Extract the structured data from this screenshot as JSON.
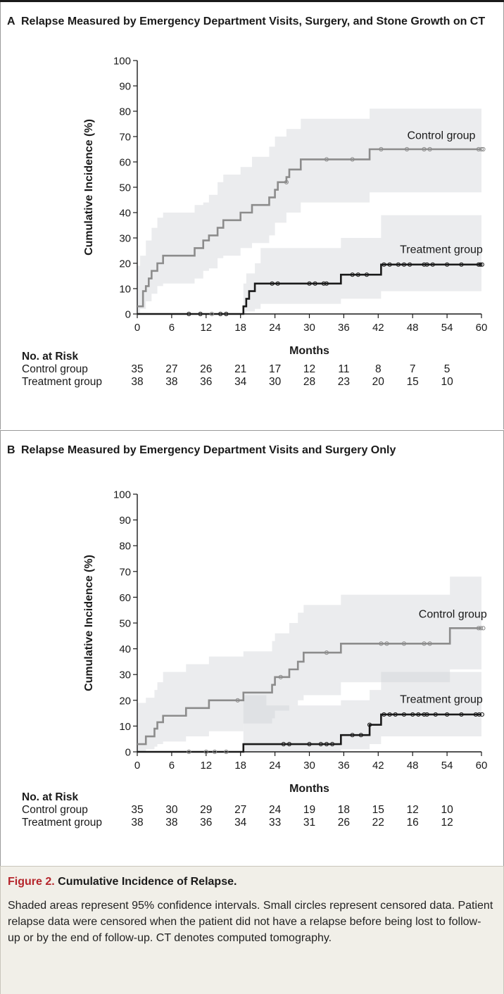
{
  "chart_data": [
    {
      "type": "line",
      "panel_letter": "A",
      "title": "Relapse Measured by Emergency Department Visits, Surgery, and Stone Growth on CT",
      "xlabel": "Months",
      "ylabel": "Cumulative Incidence (%)",
      "xlim": [
        0,
        60
      ],
      "ylim": [
        0,
        100
      ],
      "xticks": [
        0,
        6,
        12,
        18,
        24,
        30,
        36,
        42,
        48,
        54,
        60
      ],
      "yticks": [
        0,
        10,
        20,
        30,
        40,
        50,
        60,
        70,
        80,
        90,
        100
      ],
      "grid": false,
      "series": [
        {
          "name": "Control group",
          "color": "#8c8c8c",
          "step": [
            [
              0,
              3
            ],
            [
              1,
              9
            ],
            [
              1.5,
              11
            ],
            [
              2,
              14
            ],
            [
              2.5,
              17
            ],
            [
              3.5,
              20
            ],
            [
              4.5,
              23
            ],
            [
              10,
              26
            ],
            [
              11.5,
              29
            ],
            [
              12.5,
              31
            ],
            [
              14,
              34
            ],
            [
              15,
              37
            ],
            [
              18,
              40
            ],
            [
              20,
              43
            ],
            [
              23,
              46
            ],
            [
              24,
              49
            ],
            [
              24.5,
              52
            ],
            [
              26,
              54
            ],
            [
              26.5,
              57
            ],
            [
              28.5,
              61
            ],
            [
              40.5,
              65
            ],
            [
              60,
              65
            ]
          ],
          "ci_band": [
            [
              0,
              0,
              19
            ],
            [
              0.5,
              2,
              23
            ],
            [
              1.5,
              5,
              29
            ],
            [
              2.5,
              8,
              34
            ],
            [
              3.5,
              11,
              38
            ],
            [
              4.5,
              12,
              40
            ],
            [
              10,
              14,
              43
            ],
            [
              11.5,
              17,
              44
            ],
            [
              12.5,
              18,
              47
            ],
            [
              14,
              22,
              52
            ],
            [
              15,
              23,
              55
            ],
            [
              18,
              26,
              58
            ],
            [
              20,
              28,
              62
            ],
            [
              23,
              31,
              66
            ],
            [
              24,
              36,
              70
            ],
            [
              26,
              40,
              73
            ],
            [
              28.5,
              44,
              77
            ],
            [
              40.5,
              48,
              81
            ],
            [
              60,
              48,
              81
            ]
          ],
          "censored": [
            [
              11,
              0
            ],
            [
              13,
              0
            ],
            [
              15.5,
              0
            ],
            [
              26,
              52
            ],
            [
              33,
              61
            ],
            [
              37.5,
              61
            ],
            [
              42.5,
              65
            ],
            [
              47,
              65
            ],
            [
              50,
              65
            ],
            [
              51,
              65
            ],
            [
              59.5,
              65
            ],
            [
              60,
              65
            ],
            [
              60.3,
              65
            ]
          ]
        },
        {
          "name": "Treatment group",
          "color": "#1a1a1a",
          "step": [
            [
              0,
              0
            ],
            [
              18.5,
              0
            ],
            [
              18.5,
              3
            ],
            [
              19,
              6
            ],
            [
              19.5,
              9
            ],
            [
              20.5,
              12
            ],
            [
              35.5,
              15.5
            ],
            [
              42.5,
              19.5
            ],
            [
              60,
              19.5
            ]
          ],
          "ci_band": [
            [
              18.5,
              0,
              12
            ],
            [
              19,
              1,
              16
            ],
            [
              20.5,
              2,
              20
            ],
            [
              21.5,
              4,
              26
            ],
            [
              35.5,
              6,
              30
            ],
            [
              42.5,
              9,
              39
            ],
            [
              60,
              9,
              39
            ]
          ],
          "censored": [
            [
              9,
              0
            ],
            [
              11,
              0
            ],
            [
              14.5,
              0
            ],
            [
              15.5,
              0
            ],
            [
              23.5,
              12
            ],
            [
              24.5,
              12
            ],
            [
              30,
              12
            ],
            [
              31,
              12
            ],
            [
              32.5,
              12
            ],
            [
              33,
              12
            ],
            [
              37.5,
              15.5
            ],
            [
              38.5,
              15.5
            ],
            [
              40,
              15.5
            ],
            [
              43,
              19.5
            ],
            [
              44,
              19.5
            ],
            [
              45.5,
              19.5
            ],
            [
              46.5,
              19.5
            ],
            [
              47.5,
              19.5
            ],
            [
              50,
              19.5
            ],
            [
              50.5,
              19.5
            ],
            [
              51.5,
              19.5
            ],
            [
              54,
              19.5
            ],
            [
              56.5,
              19.5
            ],
            [
              59.5,
              19.5
            ],
            [
              59.8,
              19.5
            ],
            [
              60.1,
              19.5
            ]
          ]
        }
      ],
      "annotations": [
        {
          "text": "Control group",
          "x": 53,
          "y": 69
        },
        {
          "text": "Treatment group",
          "x": 53,
          "y": 24
        }
      ],
      "risk_table": {
        "header": "No. at Risk",
        "months": [
          0,
          6,
          12,
          18,
          24,
          30,
          36,
          42,
          48,
          54
        ],
        "rows": [
          {
            "label": "Control group",
            "values": [
              "35",
              "27",
              "26",
              "21",
              "17",
              "12",
              "11",
              "8",
              "7",
              "5"
            ]
          },
          {
            "label": "Treatment group",
            "values": [
              "38",
              "38",
              "36",
              "34",
              "30",
              "28",
              "23",
              "20",
              "15",
              "10"
            ]
          }
        ]
      }
    },
    {
      "type": "line",
      "panel_letter": "B",
      "title": "Relapse Measured by Emergency Department Visits and Surgery Only",
      "xlabel": "Months",
      "ylabel": "Cumulative Incidence (%)",
      "xlim": [
        0,
        60
      ],
      "ylim": [
        0,
        100
      ],
      "xticks": [
        0,
        6,
        12,
        18,
        24,
        30,
        36,
        42,
        48,
        54,
        60
      ],
      "yticks": [
        0,
        10,
        20,
        30,
        40,
        50,
        60,
        70,
        80,
        90,
        100
      ],
      "grid": false,
      "series": [
        {
          "name": "Control group",
          "color": "#8c8c8c",
          "step": [
            [
              0,
              3
            ],
            [
              1.5,
              6
            ],
            [
              3,
              9
            ],
            [
              3.5,
              11.5
            ],
            [
              4.5,
              14
            ],
            [
              8.5,
              17
            ],
            [
              12.5,
              20
            ],
            [
              18.5,
              23
            ],
            [
              23.5,
              26
            ],
            [
              24,
              29
            ],
            [
              26.5,
              32
            ],
            [
              28,
              35
            ],
            [
              29,
              38.5
            ],
            [
              35.5,
              42
            ],
            [
              54.5,
              48
            ],
            [
              60,
              48
            ]
          ],
          "ci_band": [
            [
              0,
              0,
              19
            ],
            [
              1.5,
              1,
              21
            ],
            [
              3,
              2,
              24
            ],
            [
              3.5,
              3,
              27
            ],
            [
              4.5,
              4,
              31
            ],
            [
              8.5,
              6,
              34
            ],
            [
              12.5,
              8,
              37
            ],
            [
              18.5,
              11,
              39
            ],
            [
              23.5,
              13,
              43
            ],
            [
              24,
              16,
              46
            ],
            [
              26.5,
              18,
              50
            ],
            [
              28,
              20,
              54
            ],
            [
              29,
              22,
              57
            ],
            [
              35.5,
              27,
              61
            ],
            [
              54.5,
              32,
              68
            ],
            [
              60,
              32,
              68
            ]
          ],
          "censored": [
            [
              9,
              0
            ],
            [
              12,
              0
            ],
            [
              13.5,
              0
            ],
            [
              15.5,
              0
            ],
            [
              17.5,
              20
            ],
            [
              25,
              29
            ],
            [
              33,
              38.5
            ],
            [
              42.5,
              42
            ],
            [
              43.5,
              42
            ],
            [
              46.5,
              42
            ],
            [
              50,
              42
            ],
            [
              51,
              42
            ],
            [
              59.5,
              48
            ],
            [
              59.9,
              48
            ],
            [
              60.3,
              48
            ]
          ]
        },
        {
          "name": "Treatment group",
          "color": "#1a1a1a",
          "step": [
            [
              0,
              0
            ],
            [
              18.5,
              0
            ],
            [
              18.5,
              3
            ],
            [
              35.5,
              6.5
            ],
            [
              40.5,
              10.5
            ],
            [
              42.5,
              14.5
            ],
            [
              60,
              14.5
            ]
          ],
          "ci_band": [
            [
              18.5,
              0,
              22
            ],
            [
              22.5,
              0,
              18
            ],
            [
              35.5,
              1,
              20
            ],
            [
              40.5,
              3,
              24
            ],
            [
              42.5,
              6,
              31
            ],
            [
              60,
              6,
              31
            ]
          ],
          "censored": [
            [
              25.5,
              3
            ],
            [
              26.5,
              3
            ],
            [
              30,
              3
            ],
            [
              32,
              3
            ],
            [
              33,
              3
            ],
            [
              34,
              3
            ],
            [
              37.5,
              6.5
            ],
            [
              39,
              6.5
            ],
            [
              40.5,
              10.5
            ],
            [
              43,
              14.5
            ],
            [
              44,
              14.5
            ],
            [
              45,
              14.5
            ],
            [
              46.5,
              14.5
            ],
            [
              48,
              14.5
            ],
            [
              49,
              14.5
            ],
            [
              50,
              14.5
            ],
            [
              50.5,
              14.5
            ],
            [
              52,
              14.5
            ],
            [
              54,
              14.5
            ],
            [
              56.5,
              14.5
            ],
            [
              59,
              14.5
            ],
            [
              59.6,
              14.5
            ],
            [
              60.1,
              14.5
            ]
          ]
        }
      ],
      "annotations": [
        {
          "text": "Control group",
          "x": 55,
          "y": 52
        },
        {
          "text": "Treatment group",
          "x": 53,
          "y": 19
        }
      ],
      "risk_table": {
        "header": "No. at Risk",
        "months": [
          0,
          6,
          12,
          18,
          24,
          30,
          36,
          42,
          48,
          54
        ],
        "rows": [
          {
            "label": "Control group",
            "values": [
              "35",
              "30",
              "29",
              "27",
              "24",
              "19",
              "18",
              "15",
              "12",
              "10"
            ]
          },
          {
            "label": "Treatment group",
            "values": [
              "38",
              "38",
              "36",
              "34",
              "33",
              "31",
              "26",
              "22",
              "16",
              "12"
            ]
          }
        ]
      }
    }
  ],
  "caption": {
    "figure_label": "Figure 2.",
    "title": "Cumulative Incidence of Relapse.",
    "body": "Shaded areas represent 95% confidence intervals. Small circles represent censored data. Patient relapse data were censored when the patient did not have a relapse before being lost to follow-up or by the end of follow-up. CT denotes computed tomography."
  }
}
